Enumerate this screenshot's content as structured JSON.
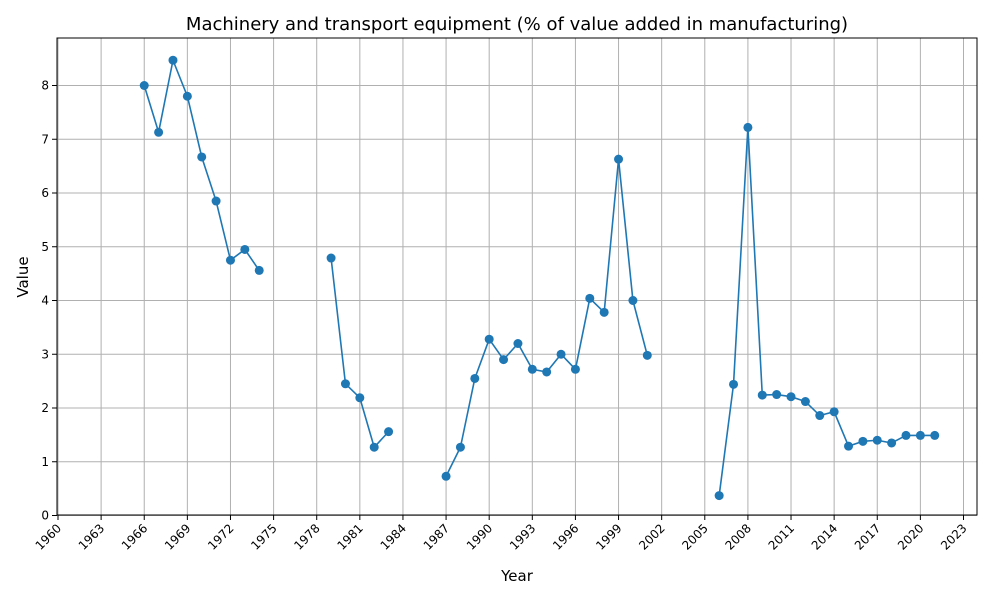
{
  "chart_data": {
    "type": "line",
    "title": "Machinery and transport equipment (% of value added in manufacturing)",
    "xlabel": "Year",
    "ylabel": "Value",
    "xlim": [
      1960,
      2023
    ],
    "ylim": [
      0,
      8.9
    ],
    "grid": true,
    "x_ticks": [
      1960,
      1963,
      1966,
      1969,
      1972,
      1975,
      1978,
      1981,
      1984,
      1987,
      1990,
      1993,
      1996,
      1999,
      2002,
      2005,
      2008,
      2011,
      2014,
      2017,
      2020,
      2023
    ],
    "y_ticks": [
      0,
      1,
      2,
      3,
      4,
      5,
      6,
      7,
      8
    ],
    "colors": {
      "series": "#1f77b4",
      "grid": "#b0b0b0"
    },
    "series": [
      {
        "segments": [
          [
            [
              1966,
              8.0
            ],
            [
              1967,
              7.13
            ],
            [
              1968,
              8.47
            ],
            [
              1969,
              7.8
            ],
            [
              1970,
              6.67
            ],
            [
              1971,
              5.85
            ],
            [
              1972,
              4.75
            ],
            [
              1973,
              4.95
            ],
            [
              1974,
              4.56
            ]
          ],
          [
            [
              1979,
              4.79
            ],
            [
              1980,
              2.45
            ],
            [
              1981,
              2.19
            ],
            [
              1982,
              1.27
            ],
            [
              1983,
              1.56
            ]
          ],
          [
            [
              1987,
              0.73
            ],
            [
              1988,
              1.27
            ],
            [
              1989,
              2.55
            ],
            [
              1990,
              3.28
            ],
            [
              1991,
              2.9
            ],
            [
              1992,
              3.2
            ],
            [
              1993,
              2.72
            ],
            [
              1994,
              2.67
            ],
            [
              1995,
              3.0
            ],
            [
              1996,
              2.72
            ],
            [
              1997,
              4.04
            ],
            [
              1998,
              3.78
            ],
            [
              1999,
              6.63
            ],
            [
              2000,
              4.0
            ],
            [
              2001,
              2.98
            ]
          ],
          [
            [
              2006,
              0.37
            ],
            [
              2007,
              2.44
            ],
            [
              2008,
              7.22
            ],
            [
              2009,
              2.24
            ],
            [
              2010,
              2.25
            ],
            [
              2011,
              2.21
            ],
            [
              2012,
              2.12
            ],
            [
              2013,
              1.86
            ],
            [
              2014,
              1.93
            ],
            [
              2015,
              1.29
            ],
            [
              2016,
              1.38
            ],
            [
              2017,
              1.4
            ],
            [
              2018,
              1.35
            ],
            [
              2019,
              1.49
            ],
            [
              2020,
              1.49
            ],
            [
              2021,
              1.49
            ]
          ]
        ]
      }
    ]
  }
}
